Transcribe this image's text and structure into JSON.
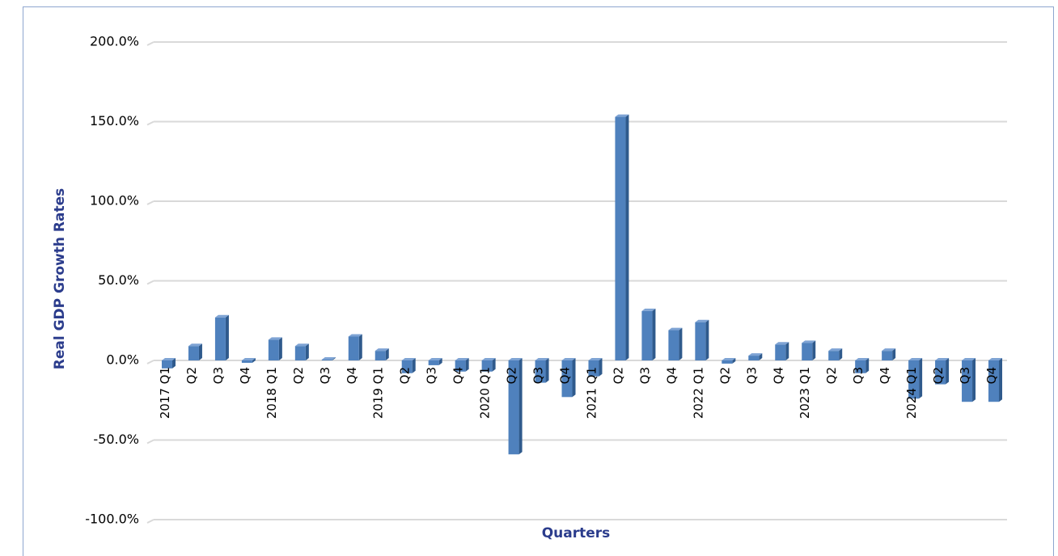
{
  "chart_data": {
    "type": "bar",
    "y_label": "Real GDP Growth Rates",
    "x_label": "Quarters",
    "categories": [
      "2017 Q1",
      "Q2",
      "Q3",
      "Q4",
      "2018 Q1",
      "Q2",
      "Q3",
      "Q4",
      "2019 Q1",
      "Q2",
      "Q3",
      "Q4",
      "2020 Q1",
      "Q2",
      "Q3",
      "Q4",
      "2021 Q1",
      "Q2",
      "Q3",
      "Q4",
      "2022 Q1",
      "Q2",
      "Q3",
      "Q4",
      "2023 Q1",
      "Q2",
      "Q3",
      "Q4",
      "2024 Q1",
      "Q2",
      "Q3",
      "Q4"
    ],
    "values": [
      -5,
      9,
      27,
      -1.5,
      13,
      9,
      0.5,
      15,
      6,
      -8,
      -3,
      -7,
      -7,
      -59,
      -14,
      -23,
      -10,
      153,
      31,
      19,
      24,
      -2,
      3,
      10,
      11,
      6,
      -8,
      6,
      -24,
      -15,
      -26,
      -26
    ],
    "color": "#4f81bd",
    "ylim": [
      -100,
      200
    ],
    "yticks": [
      {
        "value": -100,
        "label": "-100.0%"
      },
      {
        "value": -50,
        "label": "-50.0%"
      },
      {
        "value": 0,
        "label": "0.0%"
      },
      {
        "value": 50,
        "label": "50.0%"
      },
      {
        "value": 100,
        "label": "100.0%"
      },
      {
        "value": 150,
        "label": "150.0%"
      },
      {
        "value": 200,
        "label": "200.0%"
      }
    ],
    "grid": true
  }
}
